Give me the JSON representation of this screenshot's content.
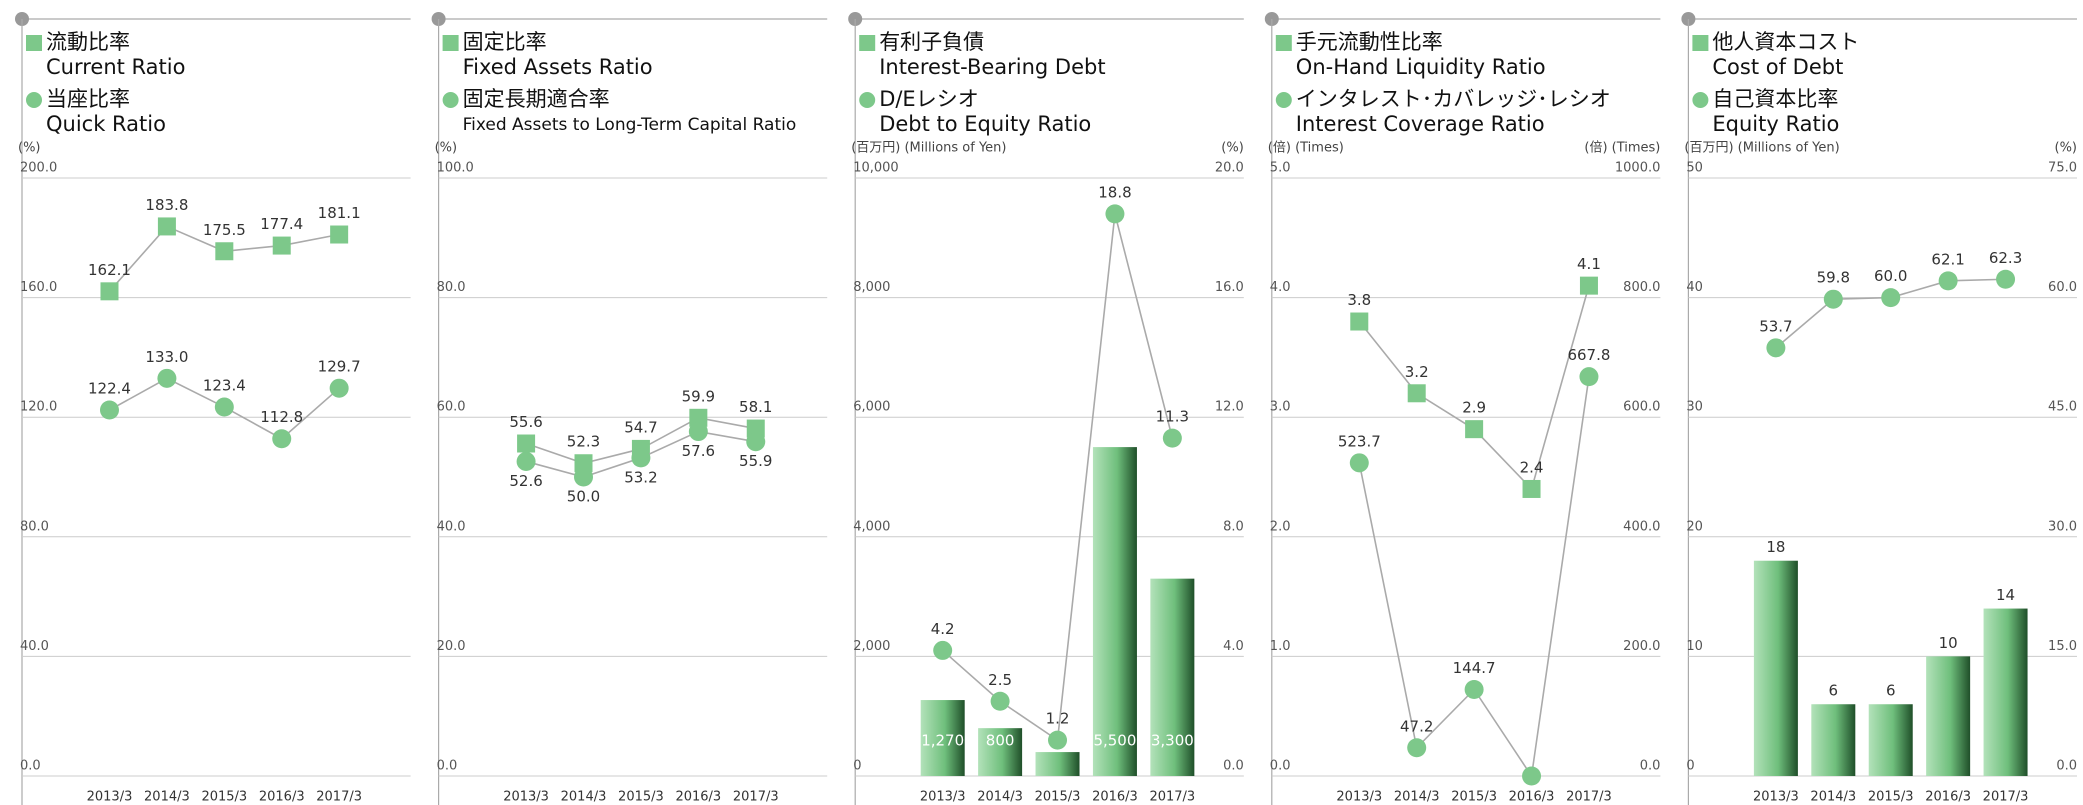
{
  "chart_data": [
    {
      "type": "line",
      "y_label": "(%)",
      "categories": [
        "2013/3",
        "2014/3",
        "2015/3",
        "2016/3",
        "2017/3"
      ],
      "ylim": [
        0,
        200
      ],
      "yticks": [
        {
          "value": 0,
          "label": "0.0"
        },
        {
          "value": 40,
          "label": "40.0"
        },
        {
          "value": 80,
          "label": "80.0"
        },
        {
          "value": 120,
          "label": "120.0"
        },
        {
          "value": 160,
          "label": "160.0"
        },
        {
          "value": 200,
          "label": "200.0"
        }
      ],
      "series": [
        {
          "name": "Current Ratio",
          "name_ja": "流動比率",
          "marker": "square",
          "color": "#7dc88a",
          "values": [
            162.1,
            183.8,
            175.5,
            177.4,
            181.1
          ],
          "value_labels": [
            "162.1",
            "183.8",
            "175.5",
            "177.4",
            "181.1"
          ]
        },
        {
          "name": "Quick Ratio",
          "name_ja": "当座比率",
          "marker": "circle",
          "color": "#7dc88a",
          "values": [
            122.4,
            133.0,
            123.4,
            112.8,
            129.7
          ],
          "value_labels": [
            "122.4",
            "133.0",
            "123.4",
            "112.8",
            "129.7"
          ]
        }
      ]
    },
    {
      "type": "line",
      "y_label": "(%)",
      "categories": [
        "2013/3",
        "2014/3",
        "2015/3",
        "2016/3",
        "2017/3"
      ],
      "ylim": [
        0,
        100
      ],
      "yticks": [
        {
          "value": 0,
          "label": "0.0"
        },
        {
          "value": 20,
          "label": "20.0"
        },
        {
          "value": 40,
          "label": "40.0"
        },
        {
          "value": 60,
          "label": "60.0"
        },
        {
          "value": 80,
          "label": "80.0"
        },
        {
          "value": 100,
          "label": "100.0"
        }
      ],
      "series": [
        {
          "name": "Fixed Assets Ratio",
          "name_ja": "固定比率",
          "marker": "square",
          "color": "#7dc88a",
          "values": [
            55.6,
            52.3,
            54.7,
            59.9,
            58.1
          ],
          "value_labels": [
            "55.6",
            "52.3",
            "54.7",
            "59.9",
            "58.1"
          ]
        },
        {
          "name": "Fixed Assets to Long-Term Capital Ratio",
          "name_ja": "固定長期適合率",
          "marker": "circle",
          "color": "#7dc88a",
          "label_position": "below",
          "values": [
            52.6,
            50.0,
            53.2,
            57.6,
            55.9
          ],
          "value_labels": [
            "52.6",
            "50.0",
            "53.2",
            "57.6",
            "55.9"
          ]
        }
      ]
    },
    {
      "type": "bar_line",
      "y_label": "(百万円) (Millions of Yen)",
      "y2_label": "(%)",
      "bar_label": "inside",
      "categories": [
        "2013/3",
        "2014/3",
        "2015/3",
        "2016/3",
        "2017/3"
      ],
      "ylim": [
        0,
        10000
      ],
      "yticks": [
        0,
        {
          "value": 2000,
          "label": "2,000"
        },
        {
          "value": 4000,
          "label": "4,000"
        },
        {
          "value": 6000,
          "label": "6,000"
        },
        {
          "value": 8000,
          "label": "8,000"
        },
        {
          "value": 10000,
          "label": "10,000"
        }
      ],
      "y2lim": [
        0,
        20
      ],
      "y2ticks": [
        {
          "value": 0,
          "label": "0.0"
        },
        {
          "value": 4,
          "label": "4.0"
        },
        {
          "value": 8,
          "label": "8.0"
        },
        {
          "value": 12,
          "label": "12.0"
        },
        {
          "value": 16,
          "label": "16.0"
        },
        {
          "value": 20,
          "label": "20.0"
        }
      ],
      "series": [
        {
          "name": "Interest-Bearing Debt",
          "name_ja": "有利子負債",
          "marker": "bar",
          "color": "#7dc88a",
          "values": [
            1270,
            800,
            400,
            5500,
            3300
          ],
          "value_labels": [
            "1,270",
            "800",
            "400",
            "5,500",
            "3,300"
          ]
        },
        {
          "name": "Debt to Equity Ratio",
          "name_ja": "D/Eレシオ",
          "marker": "circle",
          "color": "#7dc88a",
          "axis": "y2",
          "values": [
            4.2,
            2.5,
            1.2,
            18.8,
            11.3
          ],
          "value_labels": [
            "4.2",
            "2.5",
            "1.2",
            "18.8",
            "11.3"
          ]
        }
      ]
    },
    {
      "type": "line",
      "y_label": "(倍) (Times)",
      "y2_label": "(倍) (Times)",
      "categories": [
        "2013/3",
        "2014/3",
        "2015/3",
        "2016/3",
        "2017/3"
      ],
      "ylim": [
        0,
        5
      ],
      "yticks": [
        {
          "value": 0,
          "label": "0.0"
        },
        {
          "value": 1,
          "label": "1.0"
        },
        {
          "value": 2,
          "label": "2.0"
        },
        {
          "value": 3,
          "label": "3.0"
        },
        {
          "value": 4,
          "label": "4.0"
        },
        {
          "value": 5,
          "label": "5.0"
        }
      ],
      "y2lim": [
        0,
        1000
      ],
      "y2ticks": [
        {
          "value": 0,
          "label": "0.0"
        },
        {
          "value": 200,
          "label": "200.0"
        },
        {
          "value": 400,
          "label": "400.0"
        },
        {
          "value": 600,
          "label": "600.0"
        },
        {
          "value": 800,
          "label": "800.0"
        },
        {
          "value": 1000,
          "label": "1000.0"
        }
      ],
      "series": [
        {
          "name": "On-Hand Liquidity Ratio",
          "name_ja": "手元流動性比率",
          "marker": "square",
          "color": "#7dc88a",
          "values": [
            3.8,
            3.2,
            2.9,
            2.4,
            4.1
          ],
          "value_labels": [
            "3.8",
            "3.2",
            "2.9",
            "2.4",
            "4.1"
          ]
        },
        {
          "name": "Interest Coverage Ratio",
          "name_ja": "インタレスト･カバレッジ･レシオ",
          "marker": "circle",
          "color": "#7dc88a",
          "axis": "y2",
          "values": [
            523.7,
            47.2,
            144.7,
            0,
            667.8
          ],
          "value_labels": [
            "523.7",
            "47.2",
            "144.7",
            null,
            "667.8"
          ]
        }
      ]
    },
    {
      "type": "bar_line",
      "y_label": "(百万円) (Millions of Yen)",
      "y2_label": "(%)",
      "bar_label": "above",
      "categories": [
        "2013/3",
        "2014/3",
        "2015/3",
        "2016/3",
        "2017/3"
      ],
      "ylim": [
        0,
        50
      ],
      "yticks": [
        0,
        10,
        20,
        30,
        40,
        50
      ],
      "y2lim": [
        0,
        75
      ],
      "y2ticks": [
        {
          "value": 0,
          "label": "0.0"
        },
        {
          "value": 15,
          "label": "15.0"
        },
        {
          "value": 30,
          "label": "30.0"
        },
        {
          "value": 45,
          "label": "45.0"
        },
        {
          "value": 60,
          "label": "60.0"
        },
        {
          "value": 75,
          "label": "75.0"
        }
      ],
      "series": [
        {
          "name": "Cost of Debt",
          "name_ja": "他人資本コスト",
          "marker": "bar",
          "color": "#7dc88a",
          "values": [
            18,
            6,
            6,
            10,
            14
          ]
        },
        {
          "name": "Equity Ratio",
          "name_ja": "自己資本比率",
          "marker": "circle",
          "color": "#7dc88a",
          "axis": "y2",
          "values": [
            53.7,
            59.8,
            60.0,
            62.1,
            62.3
          ],
          "value_labels": [
            "53.7",
            "59.8",
            "60.0",
            "62.1",
            "62.3"
          ]
        }
      ]
    }
  ]
}
